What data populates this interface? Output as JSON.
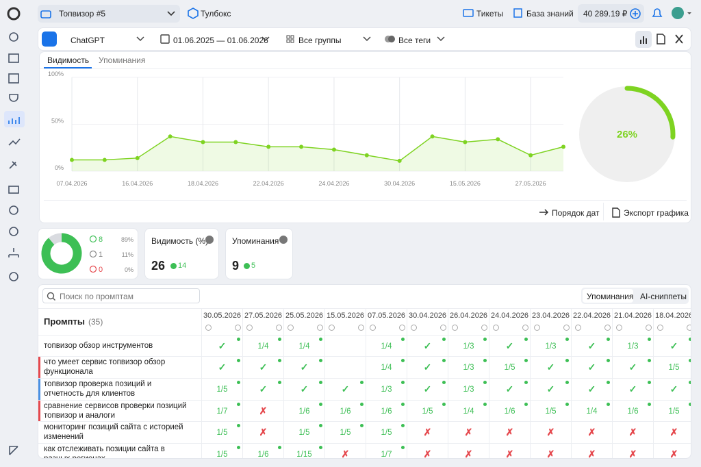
{
  "project": "Топвизор #5",
  "toolbox": "Тулбокс",
  "tickets": "Тикеты",
  "knowledge_base": "База знаний",
  "balance": "40 289.19 ₽",
  "filters": {
    "model": "ChatGPT",
    "period": "01.06.2025 — 01.06.2026",
    "groups": "Все группы",
    "tags": "Все теги"
  },
  "tabs": [
    "Видимость",
    "Упоминания"
  ],
  "chart_data": {
    "type": "line",
    "categories": [
      "07.04.2026",
      null,
      "16.04.2026",
      null,
      "18.04.2026",
      null,
      "22.04.2026",
      null,
      "24.04.2026",
      null,
      "30.04.2026",
      null,
      "15.05.2026",
      null,
      "27.05.2026",
      null
    ],
    "values": [
      12,
      12,
      14,
      37,
      31,
      31,
      26,
      26,
      23,
      17,
      11,
      37,
      31,
      34,
      17,
      26
    ],
    "color": "#7ed321",
    "ylim": [
      0,
      100
    ],
    "yticks": [
      {
        "value": 0,
        "label": "0%"
      },
      {
        "value": 50,
        "label": "50%"
      },
      {
        "value": 100,
        "label": "100%"
      }
    ],
    "grid": true
  },
  "gauge": {
    "value": 26,
    "label": "26%",
    "color": "#7ed321"
  },
  "chart_actions": [
    "Порядок дат",
    "Экспорт графика"
  ],
  "sentiment": [
    {
      "count": 8,
      "percent": "89%",
      "color": "#3dbf55"
    },
    {
      "count": 1,
      "percent": "11%",
      "color": "#d9dbe0"
    },
    {
      "count": 0,
      "percent": "0%",
      "color": "#e5484d"
    }
  ],
  "cards": [
    {
      "title": "Видимость (%)",
      "value": 26,
      "delta": 14
    },
    {
      "title": "Упоминания",
      "value": 9,
      "delta": 5
    }
  ],
  "table": {
    "search_placeholder": "Поиск по промптам",
    "modes": [
      "Упоминания",
      "AI-сниппеты"
    ],
    "prompts_title": "Промпты",
    "prompts_count": "(35)",
    "dates": [
      "30.05.2026",
      "27.05.2026",
      "25.05.2026",
      "15.05.2026",
      "07.05.2026",
      "30.04.2026",
      "26.04.2026",
      "24.04.2026",
      "23.04.2026",
      "22.04.2026",
      "21.04.2026",
      "18.04.2026"
    ],
    "rows": [
      {
        "prompt": "топвизор обзор инструментов",
        "marker": null,
        "cells": [
          "✓",
          "1/4",
          "1/4",
          null,
          "1/4",
          "✓",
          "1/3",
          "✓",
          "1/3",
          "✓",
          "1/3",
          "✓"
        ]
      },
      {
        "prompt": "что умеет сервис топвизор обзор функционала",
        "marker": "#e5484d",
        "cells": [
          "✓",
          "✓",
          "✓",
          null,
          "1/4",
          "✓",
          "1/3",
          "1/5",
          "✓",
          "✓",
          "✓",
          "1/5"
        ]
      },
      {
        "prompt": "топвизор проверка позиций и отчетность для клиентов",
        "marker": "#4a90e2",
        "cells": [
          "1/5",
          "✓",
          "✓",
          "✓",
          "1/3",
          "✓",
          "1/3",
          "✓",
          "✓",
          "✓",
          "✓",
          "✓"
        ]
      },
      {
        "prompt": "сравнение сервисов проверки позиций топвизор и аналоги",
        "marker": "#e5484d",
        "cells": [
          "1/7",
          "✗",
          "1/6",
          "1/6",
          "1/6",
          "1/5",
          "1/4",
          "1/6",
          "1/5",
          "1/4",
          "1/6",
          "1/5"
        ]
      },
      {
        "prompt": "мониторинг позиций сайта с историей изменений",
        "marker": null,
        "cells": [
          "1/5",
          "✗",
          "1/5",
          "1/5",
          "1/5",
          "✗",
          "✗",
          "✗",
          "✗",
          "✗",
          "✗",
          "✗"
        ]
      },
      {
        "prompt": "как отслеживать позиции сайта в разных регионах",
        "marker": null,
        "cells": [
          "1/5",
          "1/6",
          "1/15",
          "✗",
          "1/7",
          "✗",
          "✗",
          "✗",
          "✗",
          "✗",
          "✗",
          "✗"
        ]
      }
    ]
  }
}
